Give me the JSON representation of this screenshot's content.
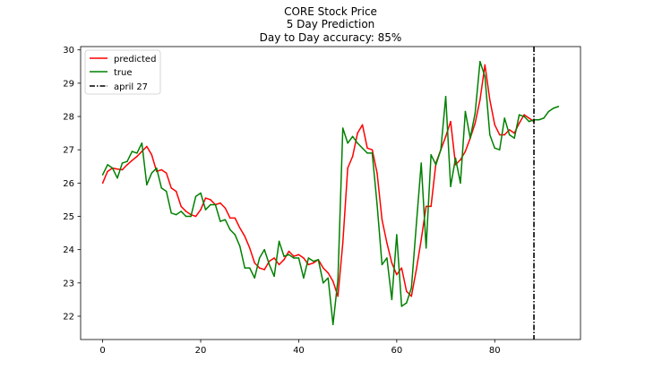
{
  "chart_data": {
    "type": "line",
    "title_lines": [
      "CORE Stock Price",
      "5 Day Prediction",
      "Day to Day accuracy: 85%"
    ],
    "xlabel": "",
    "ylabel": "",
    "xlim": [
      -4.5,
      97.5
    ],
    "ylim": [
      21.3,
      30.1
    ],
    "xticks": [
      0,
      20,
      40,
      60,
      80
    ],
    "yticks": [
      22,
      23,
      24,
      25,
      26,
      27,
      28,
      29,
      30
    ],
    "grid": false,
    "legend_position": "upper-left",
    "series": [
      {
        "name": "predicted",
        "color": "#ff0000",
        "x": [
          0,
          1,
          2,
          3,
          4,
          5,
          6,
          7,
          8,
          9,
          10,
          11,
          12,
          13,
          14,
          15,
          16,
          17,
          18,
          19,
          20,
          21,
          22,
          23,
          24,
          25,
          26,
          27,
          28,
          29,
          30,
          31,
          32,
          33,
          34,
          35,
          36,
          37,
          38,
          39,
          40,
          41,
          42,
          43,
          44,
          45,
          46,
          47,
          48,
          49,
          50,
          51,
          52,
          53,
          54,
          55,
          56,
          57,
          58,
          59,
          60,
          61,
          62,
          63,
          64,
          65,
          66,
          67,
          68,
          69,
          70,
          71,
          72,
          73,
          74,
          75,
          76,
          77,
          78,
          79,
          80,
          81,
          82,
          83,
          84,
          85,
          86,
          87,
          88
        ],
        "values": [
          26.0,
          26.35,
          26.45,
          26.42,
          26.4,
          26.55,
          26.68,
          26.8,
          26.95,
          27.1,
          26.85,
          26.35,
          26.4,
          26.3,
          25.85,
          25.75,
          25.3,
          25.15,
          25.05,
          25.0,
          25.2,
          25.55,
          25.5,
          25.35,
          25.4,
          25.25,
          24.95,
          24.95,
          24.65,
          24.4,
          24.05,
          23.6,
          23.45,
          23.4,
          23.65,
          23.75,
          23.55,
          23.7,
          23.95,
          23.8,
          23.85,
          23.75,
          23.55,
          23.6,
          23.7,
          23.45,
          23.3,
          23.05,
          22.6,
          24.2,
          26.45,
          26.8,
          27.5,
          27.75,
          27.05,
          27.0,
          26.3,
          24.9,
          24.2,
          23.6,
          23.25,
          23.45,
          22.75,
          22.6,
          23.4,
          24.3,
          25.3,
          25.3,
          26.6,
          27.0,
          27.4,
          27.85,
          26.55,
          26.7,
          26.95,
          27.35,
          27.8,
          28.5,
          29.55,
          28.5,
          27.75,
          27.45,
          27.45,
          27.6,
          27.5,
          27.8,
          28.05,
          27.95,
          27.85
        ],
        "style": "solid"
      },
      {
        "name": "true",
        "color": "#008000",
        "x": [
          0,
          1,
          2,
          3,
          4,
          5,
          6,
          7,
          8,
          9,
          10,
          11,
          12,
          13,
          14,
          15,
          16,
          17,
          18,
          19,
          20,
          21,
          22,
          23,
          24,
          25,
          26,
          27,
          28,
          29,
          30,
          31,
          32,
          33,
          34,
          35,
          36,
          37,
          38,
          39,
          40,
          41,
          42,
          43,
          44,
          45,
          46,
          47,
          48,
          49,
          50,
          51,
          52,
          53,
          54,
          55,
          56,
          57,
          58,
          59,
          60,
          61,
          62,
          63,
          64,
          65,
          66,
          67,
          68,
          69,
          70,
          71,
          72,
          73,
          74,
          75,
          76,
          77,
          78,
          79,
          80,
          81,
          82,
          83,
          84,
          85,
          86,
          87,
          88,
          89,
          90,
          91,
          92,
          93
        ],
        "values": [
          26.25,
          26.55,
          26.45,
          26.15,
          26.6,
          26.65,
          26.95,
          26.9,
          27.2,
          25.95,
          26.3,
          26.45,
          25.85,
          25.75,
          25.1,
          25.05,
          25.15,
          25.0,
          25.0,
          25.6,
          25.7,
          25.2,
          25.35,
          25.35,
          24.85,
          24.9,
          24.6,
          24.45,
          24.1,
          23.45,
          23.45,
          23.15,
          23.75,
          24.0,
          23.55,
          23.2,
          24.25,
          23.8,
          23.85,
          23.75,
          23.75,
          23.15,
          23.75,
          23.65,
          23.7,
          23.0,
          23.15,
          21.75,
          23.1,
          27.65,
          27.2,
          27.4,
          27.2,
          27.05,
          26.9,
          26.9,
          25.35,
          23.55,
          23.75,
          22.5,
          24.45,
          22.3,
          22.4,
          22.85,
          24.75,
          26.6,
          24.05,
          26.85,
          26.55,
          27.0,
          28.6,
          25.9,
          26.75,
          26.0,
          28.15,
          27.35,
          28.1,
          29.65,
          29.2,
          27.45,
          27.05,
          27.0,
          27.95,
          27.45,
          27.35,
          28.05,
          28.0,
          27.85,
          27.9,
          27.9,
          27.95,
          28.15,
          28.25,
          28.3
        ],
        "style": "solid"
      },
      {
        "name": "april 27",
        "color": "#000000",
        "x": [
          88,
          88
        ],
        "values": [
          21.3,
          30.1
        ],
        "style": "dashdot"
      }
    ]
  }
}
